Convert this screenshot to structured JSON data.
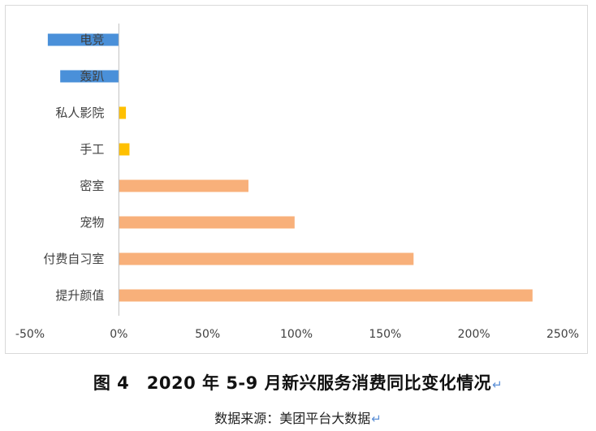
{
  "chart_data": {
    "type": "bar",
    "orientation": "horizontal",
    "categories": [
      "电竞",
      "轰趴",
      "私人影院",
      "手工",
      "密室",
      "宠物",
      "付费自习室",
      "提升颜值"
    ],
    "values": [
      -40,
      -33,
      4,
      6,
      73,
      99,
      166,
      233
    ],
    "bar_colors": [
      "#4a90d9",
      "#4a90d9",
      "#ffc000",
      "#ffc000",
      "#f8b07a",
      "#f8b07a",
      "#f8b07a",
      "#f8b07a"
    ],
    "xlim": [
      -50,
      250
    ],
    "xticks": [
      "-50%",
      "0%",
      "50%",
      "100%",
      "150%",
      "200%",
      "250%"
    ],
    "grid": false,
    "legend": "none"
  },
  "caption": {
    "text": "图 4　2020 年 5-9 月新兴服务消费同比变化情况",
    "return_mark": "↵"
  },
  "source": {
    "text": "数据来源：美团平台大数据",
    "return_mark": "↵"
  }
}
